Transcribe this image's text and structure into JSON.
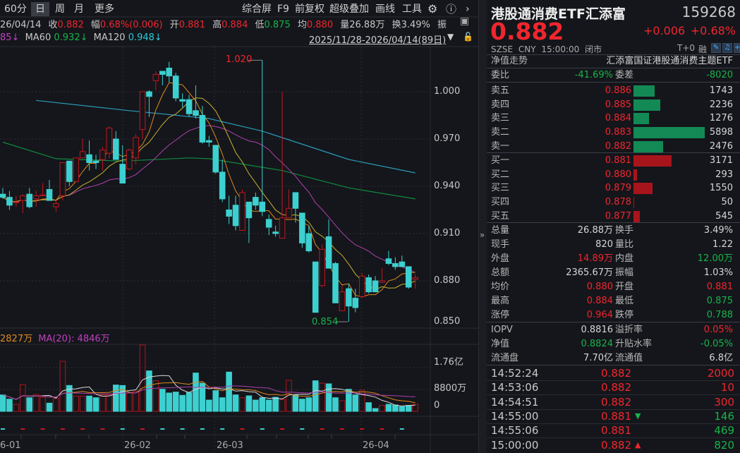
{
  "toolbar": {
    "periods": [
      "60分",
      "日",
      "周",
      "月",
      "更多"
    ],
    "selected_period": "日",
    "tools": [
      "综合屏",
      "F9",
      "前复权",
      "超级叠加",
      "画线",
      "工具"
    ],
    "icons": [
      "gear-icon",
      "help-icon",
      "chevron-right-icon"
    ]
  },
  "info": {
    "date": "26/04/14",
    "close_label": "收",
    "close": "0.882",
    "change_label": "幅",
    "change": "0.68%(0.006)",
    "open_label": "开",
    "open": "0.881",
    "high_label": "高",
    "high": "0.884",
    "low_label": "低",
    "low": "0.875",
    "avg_label": "均",
    "avg": "0.880",
    "volume": "量26.88万",
    "turnover": "换3.49%",
    "amplitude_label": "振"
  },
  "ma_legend": {
    "ma20_tail": "85↓",
    "ma60_label": "MA60",
    "ma60": "0.932↓",
    "ma120_label": "MA120",
    "ma120": "0.948↓",
    "date_range": "2025/11/28-2026/04/14(89日)"
  },
  "volume_legend": {
    "ma10": "2827万",
    "ma20": "MA(20): 4846万"
  },
  "price_axis": [
    "1.000",
    "0.970",
    "0.940",
    "0.910",
    "0.880",
    "0.850"
  ],
  "volume_axis": [
    "1.76亿",
    "8800万",
    "0"
  ],
  "x_axis": [
    "6-01",
    "26-02",
    "26-03",
    "26-04"
  ],
  "annotations": {
    "high": "1.020",
    "low": "0.854"
  },
  "colors": {
    "up": "#f0262e",
    "down": "#3dd0d0",
    "ma5": "#e08a1e",
    "ma10": "#c8b030",
    "ma20": "#b040b0",
    "ma60": "#118a40",
    "ma120": "#2a9ab8",
    "bg": "#14161b"
  },
  "chart_data": {
    "type": "candlestick",
    "price_range": [
      0.85,
      1.03
    ],
    "candles": [
      [
        0.935,
        0.939,
        0.932,
        0.933
      ],
      [
        0.933,
        0.937,
        0.925,
        0.928
      ],
      [
        0.93,
        0.934,
        0.927,
        0.93
      ],
      [
        0.931,
        0.935,
        0.923,
        0.934
      ],
      [
        0.935,
        0.939,
        0.926,
        0.927
      ],
      [
        0.932,
        0.937,
        0.927,
        0.934
      ],
      [
        0.934,
        0.942,
        0.934,
        0.9345
      ],
      [
        0.938,
        0.944,
        0.931,
        0.931
      ],
      [
        0.927,
        0.931,
        0.924,
        0.929
      ],
      [
        0.934,
        0.955,
        0.931,
        0.955
      ],
      [
        0.956,
        0.956,
        0.94,
        0.943
      ],
      [
        0.943,
        0.958,
        0.943,
        0.958
      ],
      [
        0.958,
        0.97,
        0.958,
        0.962
      ],
      [
        0.96,
        0.969,
        0.95,
        0.955
      ],
      [
        0.956,
        0.96,
        0.951,
        0.955
      ],
      [
        0.957,
        0.965,
        0.95,
        0.963
      ],
      [
        0.961,
        0.978,
        0.958,
        0.977
      ],
      [
        0.97,
        0.975,
        0.957,
        0.957
      ],
      [
        0.954,
        0.966,
        0.942,
        0.942
      ],
      [
        0.951,
        0.964,
        0.95,
        0.963
      ],
      [
        0.958,
        0.973,
        0.954,
        0.971
      ],
      [
        0.976,
        1.0,
        0.97,
        1.0
      ],
      [
        1.0,
        1.001,
        0.984,
        0.997
      ],
      [
        1.007,
        1.013,
        1.001,
        1.011
      ],
      [
        1.013,
        1.013,
        1.004,
        1.011
      ],
      [
        1.015,
        1.019,
        1.006,
        1.01
      ],
      [
        1.01,
        1.012,
        0.994,
        0.996
      ],
      [
        0.995,
        0.999,
        0.99,
        0.994
      ],
      [
        0.995,
        0.998,
        0.984,
        0.986
      ],
      [
        0.988,
        1.004,
        0.983,
        0.985
      ],
      [
        0.985,
        0.991,
        0.967,
        0.968
      ],
      [
        0.969,
        0.972,
        0.965,
        0.968
      ],
      [
        0.966,
        0.966,
        0.948,
        0.949
      ],
      [
        0.949,
        0.957,
        0.93,
        0.932
      ],
      [
        0.925,
        0.934,
        0.916,
        0.921
      ],
      [
        0.928,
        0.934,
        0.912,
        0.915
      ],
      [
        0.912,
        0.938,
        0.912,
        0.936
      ],
      [
        0.93,
        0.93,
        0.904,
        0.92
      ],
      [
        0.933,
        0.936,
        0.925,
        0.928
      ],
      [
        0.93,
        1.02,
        0.921,
        0.924
      ],
      [
        0.919,
        0.922,
        0.909,
        0.914
      ],
      [
        0.911,
        0.915,
        0.908,
        0.91
      ],
      [
        0.907,
        1.0,
        0.907,
        0.92
      ],
      [
        0.92,
        0.938,
        0.92,
        0.926
      ],
      [
        0.936,
        0.936,
        0.917,
        0.926
      ],
      [
        0.923,
        0.923,
        0.901,
        0.904
      ],
      [
        0.91,
        0.915,
        0.898,
        0.899
      ],
      [
        0.892,
        0.892,
        0.86,
        0.86
      ],
      [
        0.877,
        0.903,
        0.876,
        0.9
      ],
      [
        0.908,
        0.919,
        0.888,
        0.888
      ],
      [
        0.891,
        0.892,
        0.866,
        0.866
      ],
      [
        0.861,
        0.877,
        0.861,
        0.873
      ],
      [
        0.875,
        0.878,
        0.854,
        0.864
      ],
      [
        0.869,
        0.875,
        0.86,
        0.863
      ],
      [
        0.87,
        0.885,
        0.87,
        0.883
      ],
      [
        0.882,
        0.884,
        0.872,
        0.873
      ],
      [
        0.88,
        0.883,
        0.873,
        0.873
      ],
      [
        0.879,
        0.888,
        0.879,
        0.88
      ],
      [
        0.894,
        0.899,
        0.89,
        0.891
      ],
      [
        0.891,
        0.895,
        0.887,
        0.889
      ],
      [
        0.892,
        0.896,
        0.889,
        0.889
      ],
      [
        0.889,
        0.889,
        0.875,
        0.876
      ],
      [
        0.881,
        0.884,
        0.875,
        0.882
      ]
    ],
    "volumes_wan": [
      6630,
      4920,
      2840,
      10800,
      5490,
      6820,
      5680,
      3310,
      5210,
      20170,
      10420,
      6160,
      6160,
      6160,
      5490,
      6630,
      6630,
      10610,
      10420,
      7580,
      8050,
      26700,
      16290,
      12310,
      8900,
      7390,
      7770,
      6440,
      7580,
      15440,
      11360,
      4550,
      8330,
      5490,
      15810,
      6630,
      5490,
      6250,
      4550,
      5490,
      4550,
      5680,
      4740,
      12500,
      6630,
      4920,
      5490,
      12310,
      11360,
      11080,
      5490,
      4260,
      8900,
      6630,
      8520,
      3500,
      1140,
      2370,
      2840,
      2560,
      1890,
      2370,
      2840
    ],
    "volume_range_wan": [
      0,
      27000
    ],
    "ma60_points": [
      [
        1,
        0.968
      ],
      [
        9,
        0.9575
      ],
      [
        19,
        0.956
      ],
      [
        29,
        0.958
      ],
      [
        32,
        0.9575
      ],
      [
        43,
        0.95
      ],
      [
        53,
        0.939
      ],
      [
        63,
        0.932
      ]
    ],
    "ma120_points": [
      [
        6,
        0.9945
      ],
      [
        20,
        0.988
      ],
      [
        32,
        0.983
      ],
      [
        40,
        0.975
      ],
      [
        53,
        0.957
      ],
      [
        63,
        0.9485
      ]
    ]
  },
  "quote": {
    "name": "港股通消费ETF汇添富",
    "code": "159268",
    "price": "0.882",
    "change": "+0.006",
    "change_pct": "+0.68%",
    "exchange": "SZSE",
    "currency": "CNY",
    "time": "15:00:00",
    "status": "闭市",
    "t0": "T+0",
    "margin": "融",
    "nav_trend_label": "净值走势",
    "full_name": "汇添富国证港股通消费主题ETF",
    "weibi_label": "委比",
    "weibi": "-41.69%",
    "weicha_label": "委差",
    "weicha": "-8020"
  },
  "orderbook": {
    "asks": [
      {
        "label": "卖五",
        "price": "0.886",
        "qty": "1743",
        "vol": 1743
      },
      {
        "label": "卖四",
        "price": "0.885",
        "qty": "2236",
        "vol": 2236
      },
      {
        "label": "卖三",
        "price": "0.884",
        "qty": "1276",
        "vol": 1276
      },
      {
        "label": "卖二",
        "price": "0.883",
        "qty": "5898",
        "vol": 5898
      },
      {
        "label": "卖一",
        "price": "0.882",
        "qty": "2476",
        "vol": 2476
      }
    ],
    "bids": [
      {
        "label": "买一",
        "price": "0.881",
        "qty": "3171",
        "vol": 3171
      },
      {
        "label": "买二",
        "price": "0.880",
        "qty": "293",
        "vol": 293
      },
      {
        "label": "买三",
        "price": "0.879",
        "qty": "1550",
        "vol": 1550
      },
      {
        "label": "买四",
        "price": "0.878",
        "qty": "50",
        "vol": 50
      },
      {
        "label": "买五",
        "price": "0.877",
        "qty": "545",
        "vol": 545
      }
    ]
  },
  "stats": [
    {
      "l1": "总量",
      "v1": "26.88万",
      "c1": "wht",
      "l2": "换手",
      "v2": "3.49%",
      "c2": "wht"
    },
    {
      "l1": "现手",
      "v1": "820",
      "c1": "wht",
      "l2": "量比",
      "v2": "1.22",
      "c2": "wht"
    },
    {
      "l1": "外盘",
      "v1": "14.89万",
      "c1": "red",
      "l2": "内盘",
      "v2": "12.00万",
      "c2": "green"
    },
    {
      "l1": "总额",
      "v1": "2365.67万",
      "c1": "wht",
      "l2": "振幅",
      "v2": "1.03%",
      "c2": "wht"
    },
    {
      "l1": "均价",
      "v1": "0.880",
      "c1": "red",
      "l2": "开盘",
      "v2": "0.881",
      "c2": "red"
    },
    {
      "l1": "最高",
      "v1": "0.884",
      "c1": "red",
      "l2": "最低",
      "v2": "0.875",
      "c2": "green"
    },
    {
      "l1": "涨停",
      "v1": "0.964",
      "c1": "red",
      "l2": "跌停",
      "v2": "0.788",
      "c2": "green"
    }
  ],
  "etf_stats": [
    {
      "l1": "IOPV",
      "v1": "0.8816",
      "c1": "wht",
      "l2": "溢折率",
      "v2": "0.05%",
      "c2": "red"
    },
    {
      "l1": "净值",
      "v1": "0.8824",
      "c1": "green",
      "l2": "升贴水率",
      "v2": "-0.05%",
      "c2": "green"
    },
    {
      "l1": "流通盘",
      "v1": "7.70亿",
      "c1": "wht",
      "l2": "流通值",
      "v2": "6.8亿",
      "c2": "wht"
    }
  ],
  "ticks": [
    {
      "time": "14:52:24",
      "price": "0.882",
      "arrow": "",
      "qty": "2000",
      "qc": "red"
    },
    {
      "time": "14:53:06",
      "price": "0.882",
      "arrow": "",
      "qty": "10",
      "qc": "red"
    },
    {
      "time": "14:54:51",
      "price": "0.882",
      "arrow": "",
      "qty": "300",
      "qc": "red"
    },
    {
      "time": "14:55:00",
      "price": "0.881",
      "arrow": "down",
      "qty": "146",
      "qc": "green"
    },
    {
      "time": "14:55:06",
      "price": "0.881",
      "arrow": "",
      "qty": "469",
      "qc": "green"
    },
    {
      "time": "15:00:00",
      "price": "0.882",
      "arrow": "up",
      "qty": "820",
      "qc": "green"
    }
  ],
  "sidebar_toggle": "»"
}
